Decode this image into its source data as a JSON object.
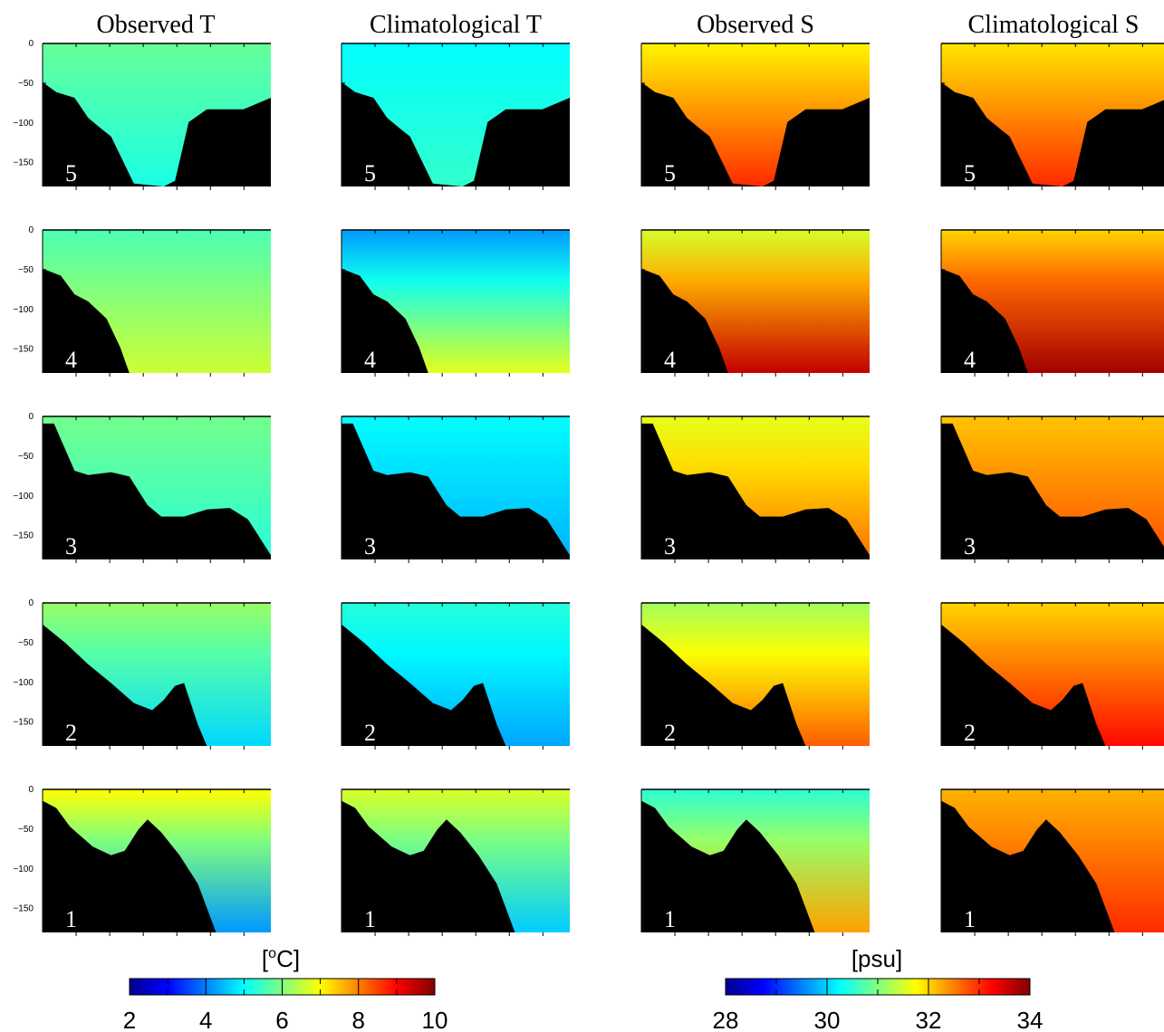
{
  "columns": [
    {
      "title": "Observed T",
      "kind": "T"
    },
    {
      "title": "Climatological T",
      "kind": "T"
    },
    {
      "title": "Observed S",
      "kind": "S"
    },
    {
      "title": "Climatological S",
      "kind": "S"
    }
  ],
  "chart_data": {
    "type": "heatmap",
    "title": "",
    "ylabel": "",
    "ylim": [
      -180,
      0
    ],
    "y_ticks": [
      0,
      -50,
      -100,
      -150
    ],
    "panel_rows": [
      {
        "section": "5",
        "shallow_T_obs": 5.8,
        "deep_T_obs": 5.2,
        "shallow_T_clim": 5.0,
        "deep_T_clim": 5.4,
        "shallow_S_obs": 31.8,
        "deep_S_obs": 33.0,
        "shallow_S_clim": 31.9,
        "deep_S_clim": 33.0
      },
      {
        "section": "4",
        "shallow_T_obs": 5.6,
        "deep_T_obs": 6.6,
        "shallow_T_clim": 4.2,
        "deep_T_clim": 6.8,
        "shallow_S_obs": 31.5,
        "deep_S_obs": 33.6,
        "shallow_S_clim": 32.0,
        "deep_S_clim": 33.8
      },
      {
        "section": "3",
        "shallow_T_obs": 5.9,
        "deep_T_obs": 5.3,
        "shallow_T_clim": 5.0,
        "deep_T_clim": 4.4,
        "shallow_S_obs": 31.6,
        "deep_S_obs": 32.6,
        "shallow_S_clim": 32.1,
        "deep_S_clim": 32.8
      },
      {
        "section": "2",
        "shallow_T_obs": 6.2,
        "deep_T_obs": 4.7,
        "shallow_T_clim": 5.3,
        "deep_T_clim": 4.3,
        "shallow_S_obs": 31.2,
        "deep_S_obs": 32.7,
        "shallow_S_clim": 32.0,
        "deep_S_clim": 33.2
      },
      {
        "section": "1",
        "shallow_T_obs": 7.0,
        "deep_T_obs": 4.2,
        "shallow_T_clim": 6.7,
        "deep_T_clim": 4.6,
        "shallow_S_obs": 30.5,
        "deep_S_obs": 32.3,
        "shallow_S_clim": 32.2,
        "deep_S_clim": 33.0
      }
    ]
  },
  "colorbars": [
    {
      "label_main": "[",
      "label_sup": "o",
      "label_rest": "C]",
      "ticks": [
        "2",
        "4",
        "6",
        "8",
        "10"
      ],
      "min": 2,
      "max": 10
    },
    {
      "label_main": "[psu]",
      "label_sup": "",
      "label_rest": "",
      "ticks": [
        "28",
        "30",
        "32",
        "34"
      ],
      "min": 28,
      "max": 34
    }
  ],
  "colors": {
    "colormap": "jet",
    "bathymetry": "#000000",
    "panel_number": "#ffffff"
  }
}
